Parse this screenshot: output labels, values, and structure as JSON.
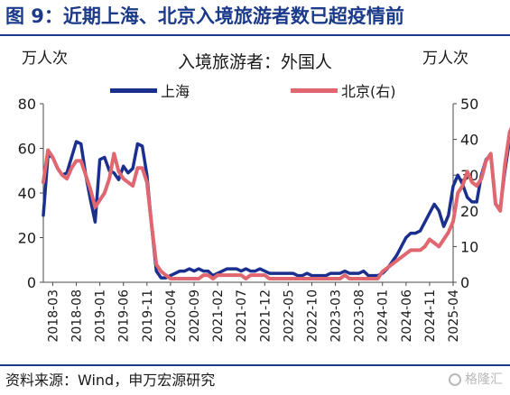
{
  "figure": {
    "title": "图 9：近期上海、北京入境旅游者数已超疫情前",
    "subtitle": "入境旅游者：外国人",
    "left_unit": "万人次",
    "right_unit": "万人次",
    "source": "资料来源：Wind，申万宏源研究",
    "watermark": "格隆汇"
  },
  "colors": {
    "shanghai": "#1b2f8f",
    "beijing": "#e06670",
    "axis": "#4a4a4a",
    "title": "#1b3a8a"
  },
  "legend": [
    {
      "label": "上海",
      "color": "#1b2f8f"
    },
    {
      "label": "北京(右)",
      "color": "#e06670"
    }
  ],
  "chart_data": {
    "type": "line",
    "x_start": "2018-01",
    "x_end": "2025-04",
    "x_ticks": [
      "2018-03",
      "2018-08",
      "2019-01",
      "2019-06",
      "2019-11",
      "2020-04",
      "2020-09",
      "2021-02",
      "2021-07",
      "2021-12",
      "2022-05",
      "2022-10",
      "2023-03",
      "2023-08",
      "2024-01",
      "2024-06",
      "2024-11",
      "2025-04"
    ],
    "y_left": {
      "min": 0,
      "max": 80,
      "ticks": [
        0,
        20,
        40,
        60,
        80
      ],
      "unit": "万人次"
    },
    "y_right": {
      "min": 0,
      "max": 50,
      "ticks": [
        0,
        10,
        20,
        30,
        40,
        50
      ],
      "unit": "万人次"
    },
    "grid": false,
    "legend_position": "top",
    "series": [
      {
        "name": "上海",
        "axis": "left",
        "color": "#1b2f8f",
        "values": [
          30,
          57,
          56,
          51,
          48,
          49,
          56,
          63,
          62,
          48,
          37,
          27,
          55,
          56,
          50,
          49,
          46,
          52,
          49,
          51,
          62,
          61,
          48,
          25,
          5,
          2,
          2,
          3,
          4,
          5,
          5,
          6,
          5,
          6,
          5,
          5,
          3,
          4,
          5,
          6,
          6,
          6,
          5,
          6,
          5,
          5,
          6,
          5,
          4,
          4,
          4,
          4,
          4,
          4,
          3,
          3,
          4,
          3,
          3,
          3,
          3,
          4,
          4,
          4,
          5,
          4,
          4,
          4,
          5,
          3,
          3,
          3,
          4,
          6,
          9,
          12,
          16,
          20,
          22,
          22,
          23,
          27,
          31,
          35,
          32,
          25,
          30,
          43,
          48,
          44,
          38,
          36,
          36,
          48,
          55,
          57,
          35,
          33,
          50,
          64,
          67,
          69,
          70
        ]
      },
      {
        "name": "北京(右)",
        "axis": "right",
        "color": "#e06670",
        "values": [
          28,
          37,
          35,
          32,
          30,
          29,
          32,
          34,
          34,
          30,
          26,
          21,
          23,
          25,
          29,
          36,
          31,
          29,
          28,
          27,
          32,
          32,
          28,
          16,
          5,
          3,
          2,
          1,
          1,
          1,
          1,
          1,
          1,
          1,
          2,
          2,
          1,
          2,
          2,
          2,
          2,
          2,
          2,
          1,
          2,
          2,
          2,
          2,
          1,
          1,
          1,
          1,
          1,
          1,
          1,
          1,
          1,
          1,
          1,
          1,
          1,
          1,
          1,
          1,
          2,
          1,
          1,
          1,
          1,
          1,
          1,
          1,
          3,
          4,
          5,
          6,
          7,
          8,
          9,
          9,
          9,
          10,
          12,
          11,
          10,
          12,
          14,
          17,
          25,
          27,
          31,
          28,
          27,
          29,
          34,
          36,
          22,
          20,
          33,
          42,
          45,
          44,
          43
        ]
      }
    ]
  }
}
